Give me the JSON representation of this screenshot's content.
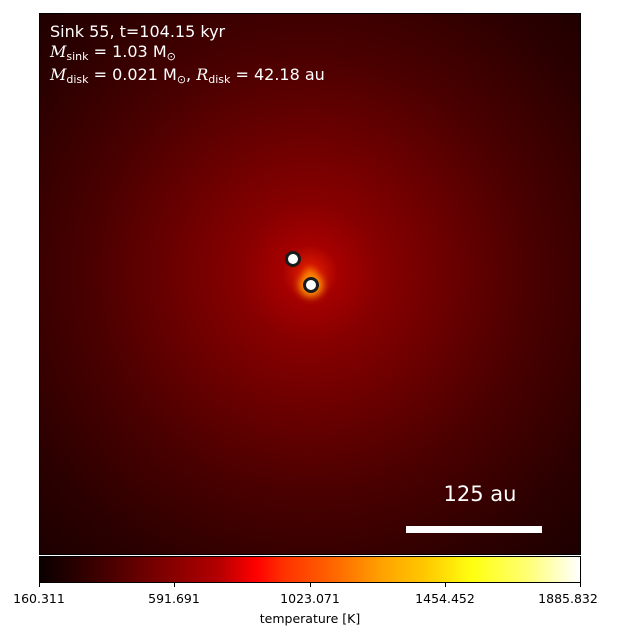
{
  "annotations": {
    "line1": "Sink 55, t=104.15 kyr",
    "line2": {
      "M": "M",
      "sub": "sink",
      "rest": " = 1.03 M",
      "sub2": "⊙"
    },
    "line3": {
      "M": "M",
      "sub": "disk",
      "rest": " = 0.021 M",
      "sub2": "⊙",
      "sep": ", ",
      "R": "R",
      "rsub": "disk",
      "rrest": " = 42.18 au"
    }
  },
  "scale_bar": {
    "label": "125 au"
  },
  "colorbar": {
    "label": "temperature [K]",
    "ticks": [
      "160.311",
      "591.691",
      "1023.071",
      "1454.452",
      "1885.832"
    ],
    "colormap": "hot"
  },
  "sinks": {
    "count": 2,
    "marker_fill": "#ffffff",
    "marker_edge": "#1a1a1a"
  },
  "colors": {
    "background_center": "#d11500",
    "background_edge": "#0a0000"
  }
}
